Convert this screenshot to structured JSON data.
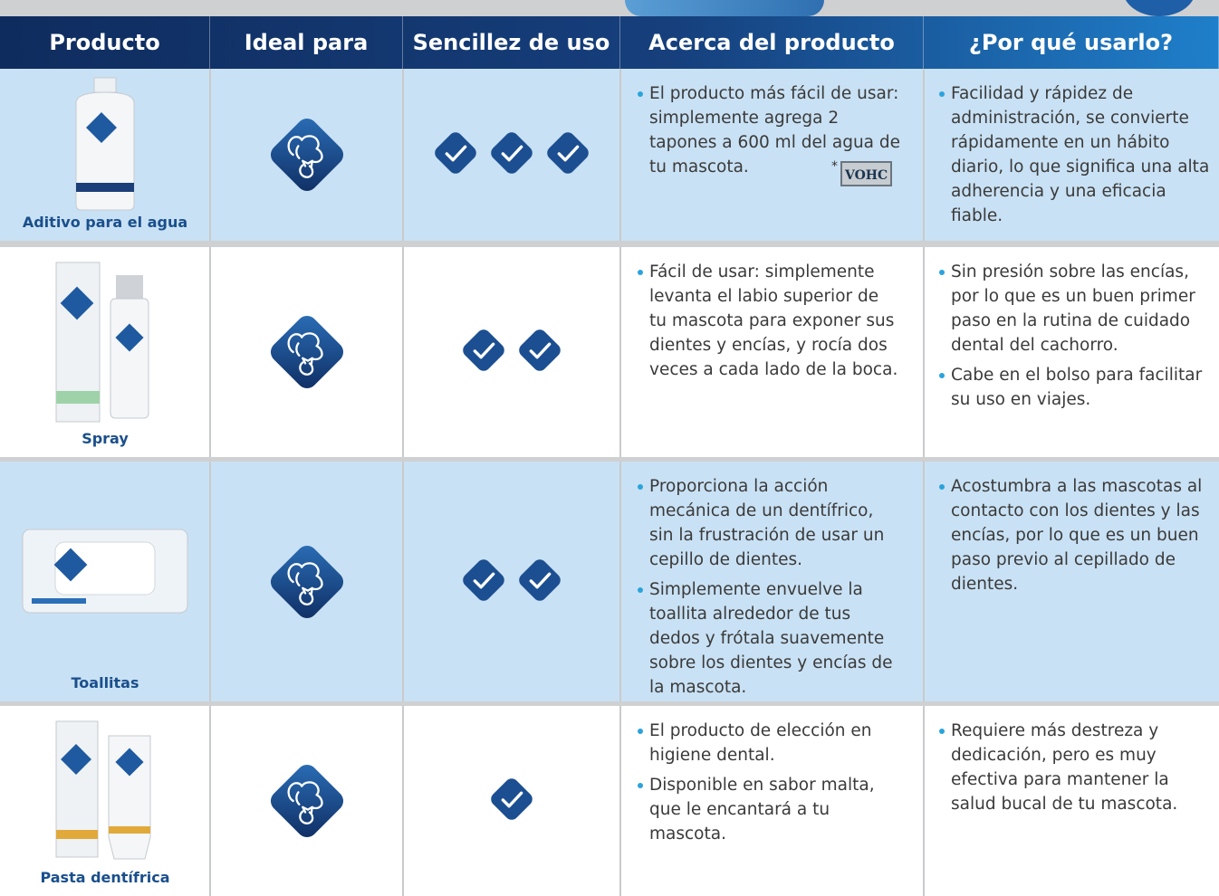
{
  "header": {
    "columns": [
      "Producto",
      "Ideal para",
      "Sencillez de uso",
      "Acerca del producto",
      "¿Por qué usarlo?"
    ]
  },
  "rows": [
    {
      "product": "Aditivo para el agua",
      "ease": 3,
      "about": [
        "El producto más fácil de usar: simplemente agrega 2 tapones a 600 ml del agua de tu mascota."
      ],
      "note_mark": "*",
      "seal": "VOHC",
      "why": [
        "Facilidad y rápidez de administración, se convierte rápidamente en un hábito diario, lo que significa una alta adherencia y una eficacia fiable."
      ]
    },
    {
      "product": "Spray",
      "ease": 2,
      "about": [
        "Fácil de usar: simplemente levanta el labio superior de tu mascota para exponer sus dientes y encías, y rocía dos veces a cada lado de la boca."
      ],
      "why": [
        "Sin presión sobre las encías, por lo que es un buen primer paso en la rutina de cuidado dental del cachorro.",
        "Cabe en el bolso para facilitar su uso en viajes."
      ]
    },
    {
      "product": "Toallitas",
      "ease": 2,
      "about": [
        "Proporciona la acción mecánica de un dentífrico, sin la frustración de usar un cepillo de dientes.",
        "Simplemente envuelve la toallita alrededor de tus dedos y frótala suavemente sobre los dientes y encías de la mascota."
      ],
      "why": [
        "Acostumbra a las mascotas al contacto con los dientes y las encías, por lo que es un buen paso previo al cepillado de dientes."
      ]
    },
    {
      "product": "Pasta dentífrica",
      "ease": 1,
      "about": [
        "El producto de elección en higiene dental.",
        "Disponible en sabor malta, que le encantará a tu mascota."
      ],
      "why": [
        "Requiere más destreza y dedicación, pero es muy efectiva para mantener la salud bucal de tu mascota."
      ]
    }
  ]
}
